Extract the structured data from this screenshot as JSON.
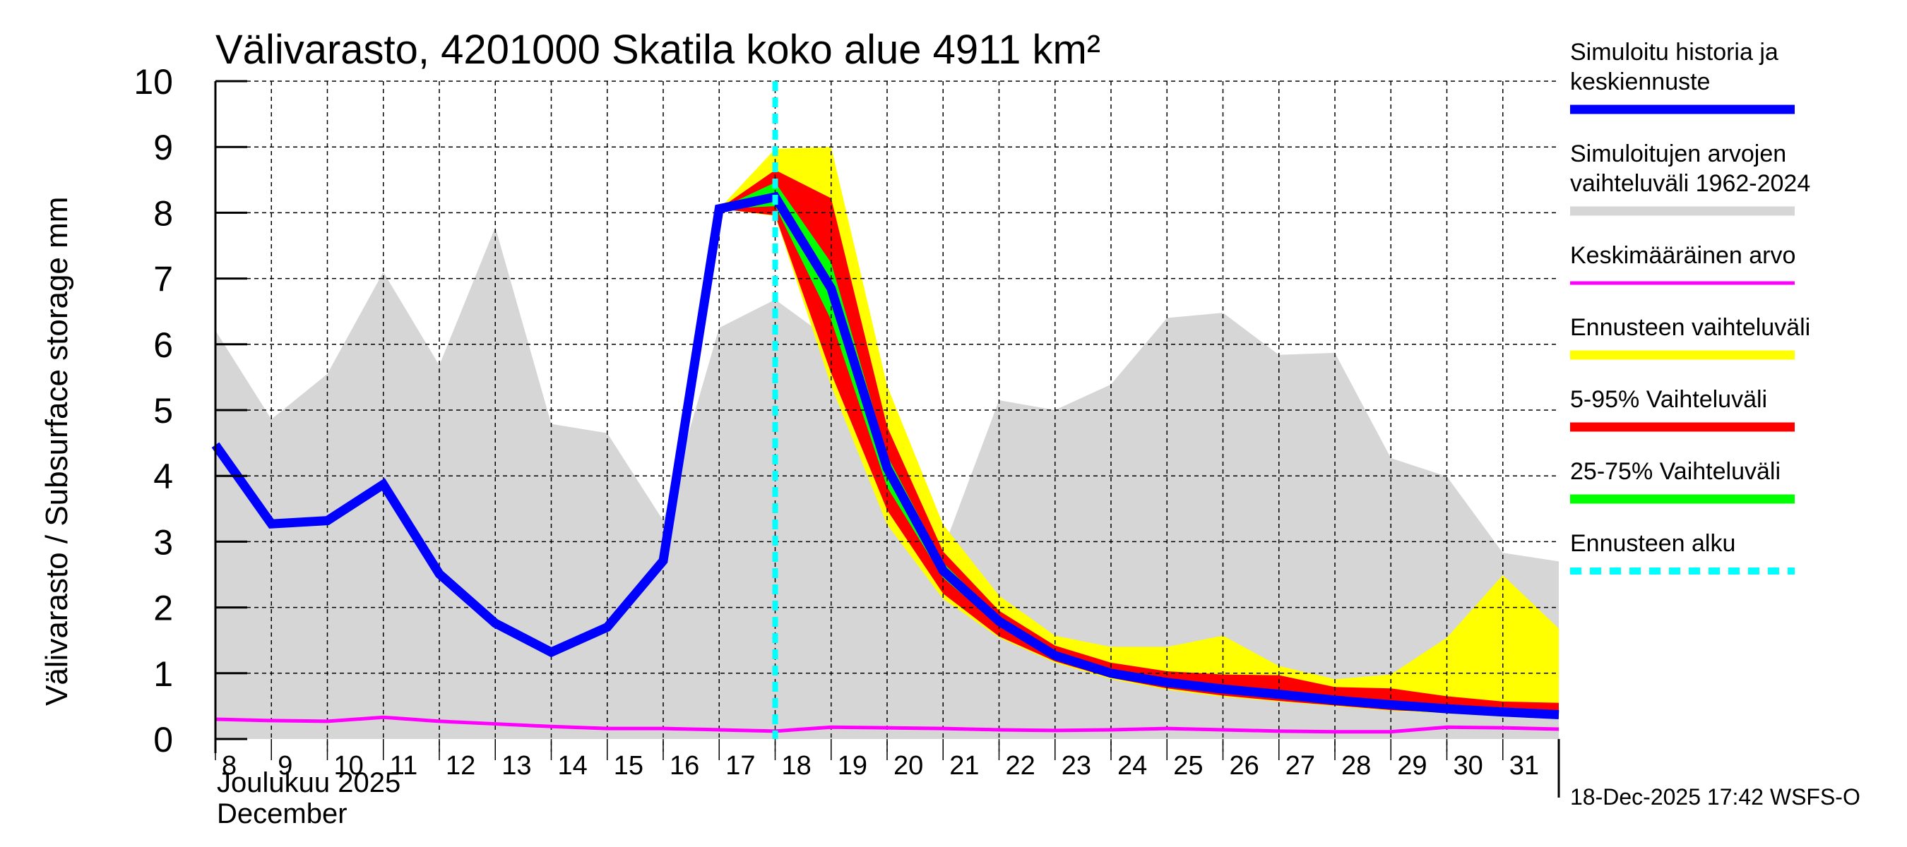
{
  "chart_data": {
    "type": "area",
    "title": "Välivarasto, 4201000 Skatila koko alue 4911 km²",
    "ylabel": "Välivarasto / Subsurface storage  mm",
    "xlabel_line1": "Joulukuu  2025",
    "xlabel_line2": "December",
    "ylim": [
      0,
      10
    ],
    "xlim": [
      8,
      32
    ],
    "grid": true,
    "yticks": [
      0,
      1,
      2,
      3,
      4,
      5,
      6,
      7,
      8,
      9,
      10
    ],
    "xticks": [
      8,
      9,
      10,
      11,
      12,
      13,
      14,
      15,
      16,
      17,
      18,
      19,
      20,
      21,
      22,
      23,
      24,
      25,
      26,
      27,
      28,
      29,
      30,
      31
    ],
    "forecast_start_day": 18,
    "legend_position": "right",
    "series": [
      {
        "name": "Simuloitujen arvojen vaihteluväli 1962-2024",
        "kind": "band",
        "color": "#d6d6d6",
        "x": [
          8,
          9,
          10,
          11,
          12,
          13,
          14,
          15,
          16,
          17,
          18,
          19,
          20,
          21,
          22,
          23,
          24,
          25,
          26,
          27,
          28,
          29,
          30,
          31,
          32
        ],
        "upper": [
          6.21,
          4.86,
          5.55,
          7.1,
          5.68,
          7.78,
          4.79,
          4.65,
          3.32,
          6.25,
          6.68,
          6.06,
          4.45,
          2.88,
          5.15,
          5.0,
          5.39,
          6.4,
          6.48,
          5.84,
          5.87,
          4.27,
          3.99,
          2.83,
          2.7
        ],
        "lower": [
          0,
          0,
          0,
          0,
          0,
          0,
          0,
          0,
          0,
          0,
          0,
          0,
          0,
          0,
          0,
          0,
          0,
          0,
          0,
          0,
          0,
          0,
          0,
          0,
          0
        ]
      },
      {
        "name": "Ennusteen vaihteluväli",
        "kind": "band",
        "color": "#ffff00",
        "x": [
          17,
          18,
          19,
          20,
          21,
          22,
          23,
          24,
          25,
          26,
          27,
          28,
          29,
          30,
          31,
          32
        ],
        "upper": [
          8.06,
          8.97,
          9.0,
          5.37,
          3.26,
          2.18,
          1.57,
          1.4,
          1.4,
          1.57,
          1.11,
          0.91,
          0.98,
          1.54,
          2.49,
          1.68
        ],
        "lower": [
          8.06,
          7.95,
          5.37,
          3.26,
          2.13,
          1.54,
          1.16,
          0.91,
          0.75,
          0.64,
          0.57,
          0.5,
          0.43,
          0.39,
          0.34,
          0.31
        ]
      },
      {
        "name": "5-95% Vaihteluväli",
        "kind": "band",
        "color": "#ff0000",
        "x": [
          17,
          18,
          19,
          20,
          21,
          22,
          23,
          24,
          25,
          26,
          27,
          28,
          29,
          30,
          31,
          32
        ],
        "upper": [
          8.06,
          8.65,
          8.22,
          4.75,
          2.85,
          1.95,
          1.42,
          1.16,
          1.03,
          0.98,
          0.97,
          0.79,
          0.77,
          0.65,
          0.57,
          0.55
        ],
        "lower": [
          8.06,
          7.96,
          5.56,
          3.48,
          2.21,
          1.56,
          1.18,
          0.93,
          0.77,
          0.66,
          0.58,
          0.51,
          0.44,
          0.4,
          0.35,
          0.32
        ]
      },
      {
        "name": "25-75% Vaihteluväli",
        "kind": "band",
        "color": "#00ff00",
        "x": [
          17,
          18,
          19,
          20,
          21,
          22,
          23,
          24,
          25,
          26,
          27,
          28,
          29,
          30,
          31,
          32
        ],
        "upper": [
          8.06,
          8.46,
          7.24,
          4.31,
          2.68,
          1.84,
          1.31,
          1.04,
          0.89,
          0.79,
          0.71,
          0.62,
          0.55,
          0.49,
          0.44,
          0.4
        ],
        "lower": [
          8.06,
          8.1,
          6.37,
          3.83,
          2.45,
          1.72,
          1.23,
          0.96,
          0.82,
          0.72,
          0.65,
          0.56,
          0.49,
          0.43,
          0.38,
          0.34
        ]
      },
      {
        "name": "Keskimääräinen arvo",
        "kind": "line",
        "color": "#ff00ff",
        "x": [
          8,
          9,
          10,
          11,
          12,
          13,
          14,
          15,
          16,
          17,
          18,
          19,
          20,
          21,
          22,
          23,
          24,
          25,
          26,
          27,
          28,
          29,
          30,
          31,
          32
        ],
        "y": [
          0.3,
          0.28,
          0.27,
          0.33,
          0.27,
          0.23,
          0.19,
          0.16,
          0.16,
          0.14,
          0.12,
          0.18,
          0.17,
          0.16,
          0.14,
          0.13,
          0.14,
          0.16,
          0.14,
          0.12,
          0.11,
          0.11,
          0.18,
          0.17,
          0.15
        ]
      },
      {
        "name": "Simuloitu historia ja keskiennuste",
        "kind": "line",
        "color": "#0000ff",
        "x": [
          8,
          9,
          10,
          11,
          12,
          13,
          14,
          15,
          16,
          17,
          18,
          19,
          20,
          21,
          22,
          23,
          24,
          25,
          26,
          27,
          28,
          29,
          30,
          31,
          32
        ],
        "y": [
          4.47,
          3.27,
          3.32,
          3.87,
          2.51,
          1.76,
          1.32,
          1.7,
          2.71,
          8.06,
          8.24,
          6.85,
          4.12,
          2.56,
          1.79,
          1.27,
          1.0,
          0.86,
          0.76,
          0.68,
          0.59,
          0.52,
          0.46,
          0.41,
          0.37
        ]
      }
    ]
  },
  "legend": [
    {
      "label_lines": [
        "Simuloitu historia ja",
        "keskiennuste"
      ],
      "color": "#0000ff",
      "style": "thick"
    },
    {
      "label_lines": [
        "Simuloitujen arvojen",
        "vaihteluväli 1962-2024"
      ],
      "color": "#d6d6d6",
      "style": "thick"
    },
    {
      "label_lines": [
        "Keskimääräinen arvo"
      ],
      "color": "#ff00ff",
      "style": "thin"
    },
    {
      "label_lines": [
        "Ennusteen vaihteluväli"
      ],
      "color": "#ffff00",
      "style": "thick"
    },
    {
      "label_lines": [
        "5-95% Vaihteluväli"
      ],
      "color": "#ff0000",
      "style": "thick"
    },
    {
      "label_lines": [
        "25-75% Vaihteluväli"
      ],
      "color": "#00ff00",
      "style": "thick"
    },
    {
      "label_lines": [
        "Ennusteen alku"
      ],
      "color": "#00ffff",
      "style": "dashed"
    }
  ],
  "footer": "18-Dec-2025 17:42 WSFS-O"
}
